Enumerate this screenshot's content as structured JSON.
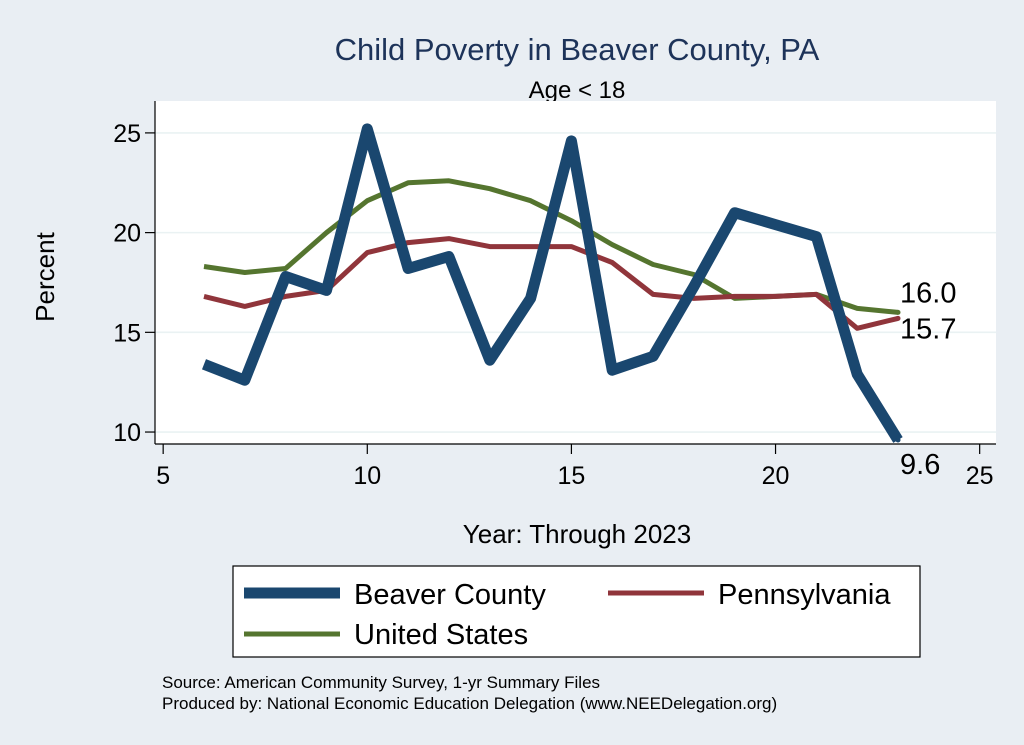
{
  "chart_data": {
    "type": "line",
    "title": "Child Poverty in Beaver County, PA",
    "subtitle": "Age < 18",
    "xlabel": "Year: Through 2023",
    "ylabel": "Percent",
    "xlim": [
      4.8,
      25.4
    ],
    "ylim": [
      9.4,
      26.6
    ],
    "xticks": [
      5,
      10,
      15,
      20,
      25
    ],
    "yticks": [
      10,
      15,
      20,
      25
    ],
    "grid": true,
    "series": [
      {
        "name": "Beaver County",
        "color": "#1a476f",
        "x": [
          6,
          7,
          8,
          9,
          10,
          11,
          12,
          13,
          14,
          15,
          16,
          17,
          18,
          19,
          20,
          21,
          22,
          23
        ],
        "values": [
          13.4,
          12.6,
          17.8,
          17.1,
          25.2,
          18.2,
          18.8,
          13.6,
          16.7,
          24.6,
          13.1,
          13.8,
          17.3,
          21.0,
          20.4,
          19.8,
          12.9,
          9.6
        ],
        "end_label": "9.6"
      },
      {
        "name": "Pennsylvania",
        "color": "#90353b",
        "x": [
          6,
          7,
          8,
          9,
          10,
          11,
          12,
          13,
          14,
          15,
          16,
          17,
          18,
          19,
          20,
          21,
          22,
          23
        ],
        "values": [
          16.8,
          16.3,
          16.8,
          17.1,
          19.0,
          19.5,
          19.7,
          19.3,
          19.3,
          19.3,
          18.5,
          16.9,
          16.7,
          16.8,
          16.8,
          16.9,
          15.2,
          15.7
        ],
        "end_label": "15.7"
      },
      {
        "name": "United States",
        "color": "#55752f",
        "x": [
          6,
          7,
          8,
          9,
          10,
          11,
          12,
          13,
          14,
          15,
          16,
          17,
          18,
          19,
          20,
          21,
          22,
          23
        ],
        "values": [
          18.3,
          18.0,
          18.2,
          20.0,
          21.6,
          22.5,
          22.6,
          22.2,
          21.6,
          20.6,
          19.4,
          18.4,
          17.9,
          16.7,
          16.8,
          16.9,
          16.2,
          16.0
        ],
        "end_label": "16.0"
      }
    ],
    "legend": {
      "position": "bottom",
      "entries": [
        "Beaver County",
        "Pennsylvania",
        "United States"
      ]
    },
    "notes": [
      "Source: American Community Survey, 1-yr Summary Files",
      "Produced by: National Economic Education Delegation (www.NEEDelegation.org)"
    ]
  }
}
